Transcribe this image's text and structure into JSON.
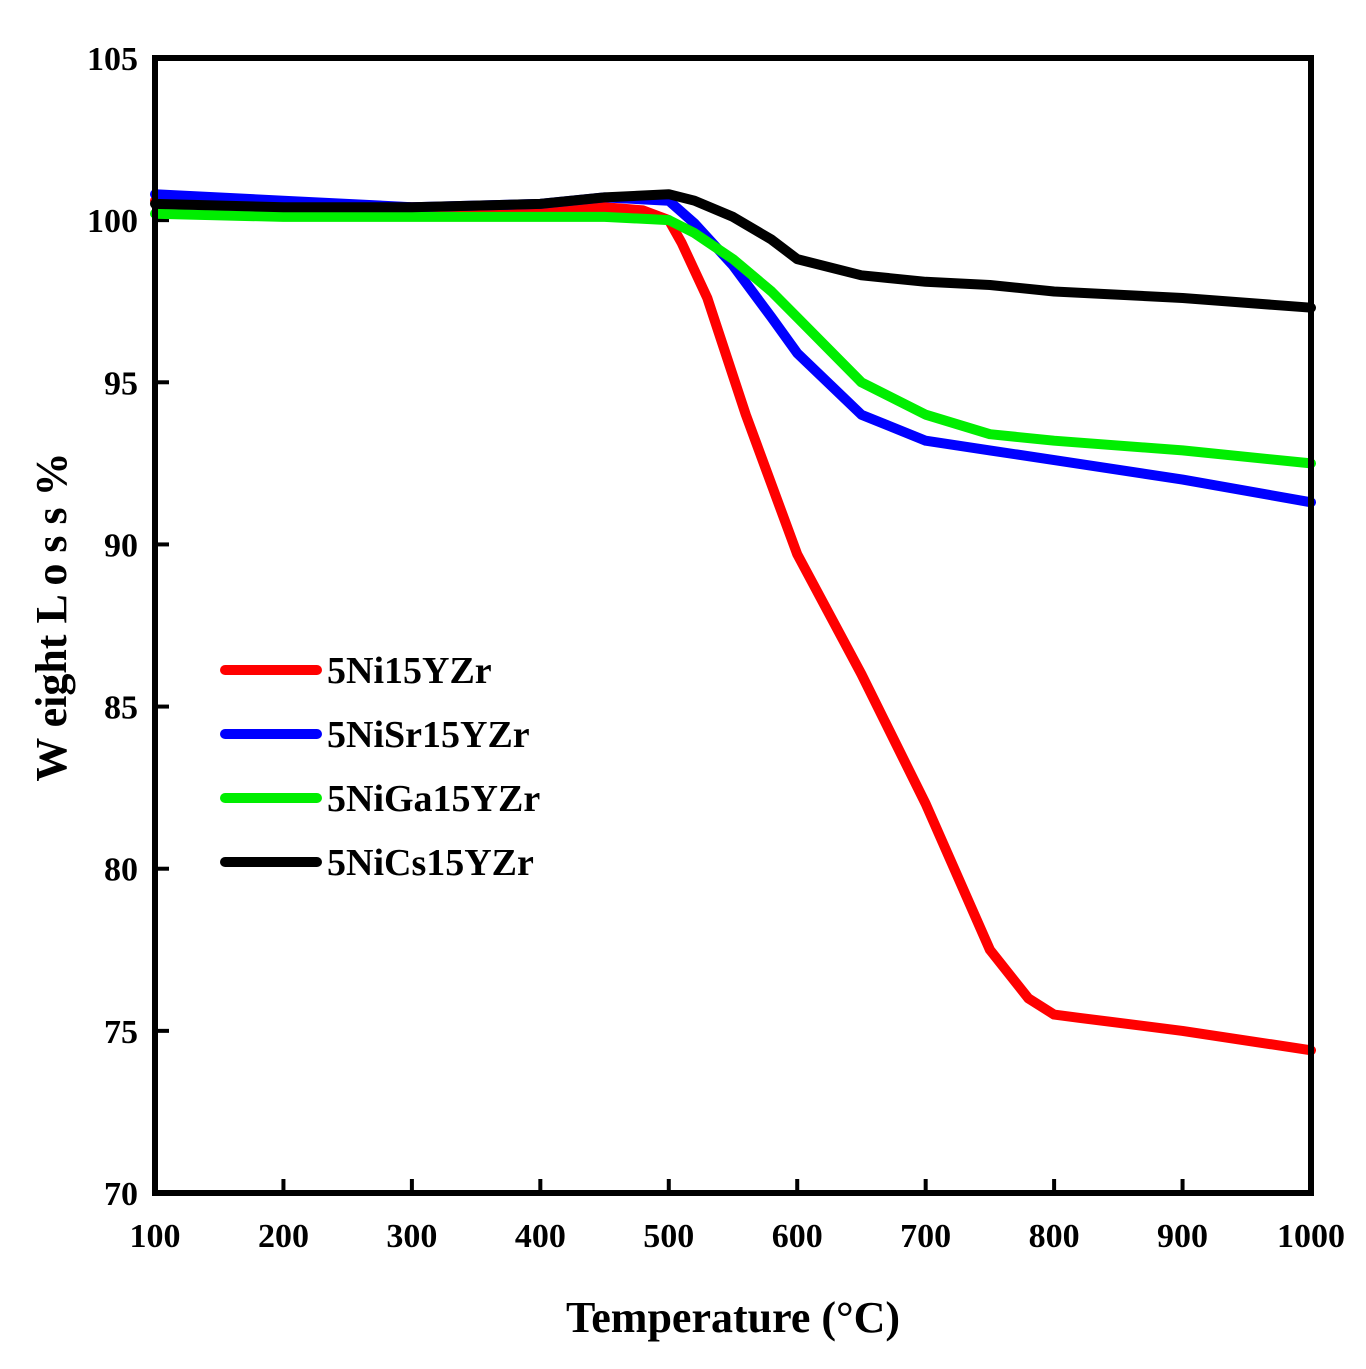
{
  "chart_data": {
    "type": "line",
    "title": "",
    "xlabel": "Temperature (°C)",
    "ylabel": "W eight  L o s s  %",
    "xlim": [
      100,
      1000
    ],
    "ylim": [
      70,
      105
    ],
    "xticks": [
      100,
      200,
      300,
      400,
      500,
      600,
      700,
      800,
      900,
      1000
    ],
    "yticks": [
      70,
      75,
      80,
      85,
      90,
      95,
      100,
      105
    ],
    "grid": false,
    "legend_position": "center-left",
    "series": [
      {
        "name": "5Ni15YZr",
        "color": "#ff0000",
        "x": [
          100,
          200,
          300,
          400,
          450,
          480,
          500,
          510,
          530,
          560,
          600,
          650,
          700,
          750,
          780,
          800,
          820,
          900,
          1000
        ],
        "y": [
          100.6,
          100.5,
          100.4,
          100.4,
          100.4,
          100.3,
          100.0,
          99.3,
          97.6,
          94.0,
          89.7,
          86.0,
          82.0,
          77.5,
          76.0,
          75.5,
          75.4,
          75.0,
          74.4
        ]
      },
      {
        "name": "5NiSr15YZr",
        "color": "#0000ff",
        "x": [
          100,
          200,
          300,
          400,
          450,
          500,
          520,
          550,
          580,
          600,
          650,
          700,
          750,
          800,
          900,
          1000
        ],
        "y": [
          100.8,
          100.6,
          100.4,
          100.5,
          100.7,
          100.6,
          99.9,
          98.6,
          97.0,
          95.9,
          94.0,
          93.2,
          92.9,
          92.6,
          92.0,
          91.3
        ]
      },
      {
        "name": "5NiGa15YZr",
        "color": "#00ee00",
        "x": [
          100,
          200,
          300,
          400,
          450,
          500,
          520,
          550,
          580,
          600,
          650,
          700,
          750,
          800,
          900,
          1000
        ],
        "y": [
          100.2,
          100.1,
          100.1,
          100.1,
          100.1,
          100.0,
          99.6,
          98.8,
          97.8,
          97.0,
          95.0,
          94.0,
          93.4,
          93.2,
          92.9,
          92.5
        ]
      },
      {
        "name": "5NiCs15YZr",
        "color": "#000000",
        "x": [
          100,
          200,
          300,
          400,
          450,
          500,
          520,
          550,
          580,
          600,
          650,
          700,
          750,
          800,
          900,
          1000
        ],
        "y": [
          100.5,
          100.4,
          100.4,
          100.5,
          100.7,
          100.8,
          100.6,
          100.1,
          99.4,
          98.8,
          98.3,
          98.1,
          98.0,
          97.8,
          97.6,
          97.3
        ]
      }
    ]
  }
}
